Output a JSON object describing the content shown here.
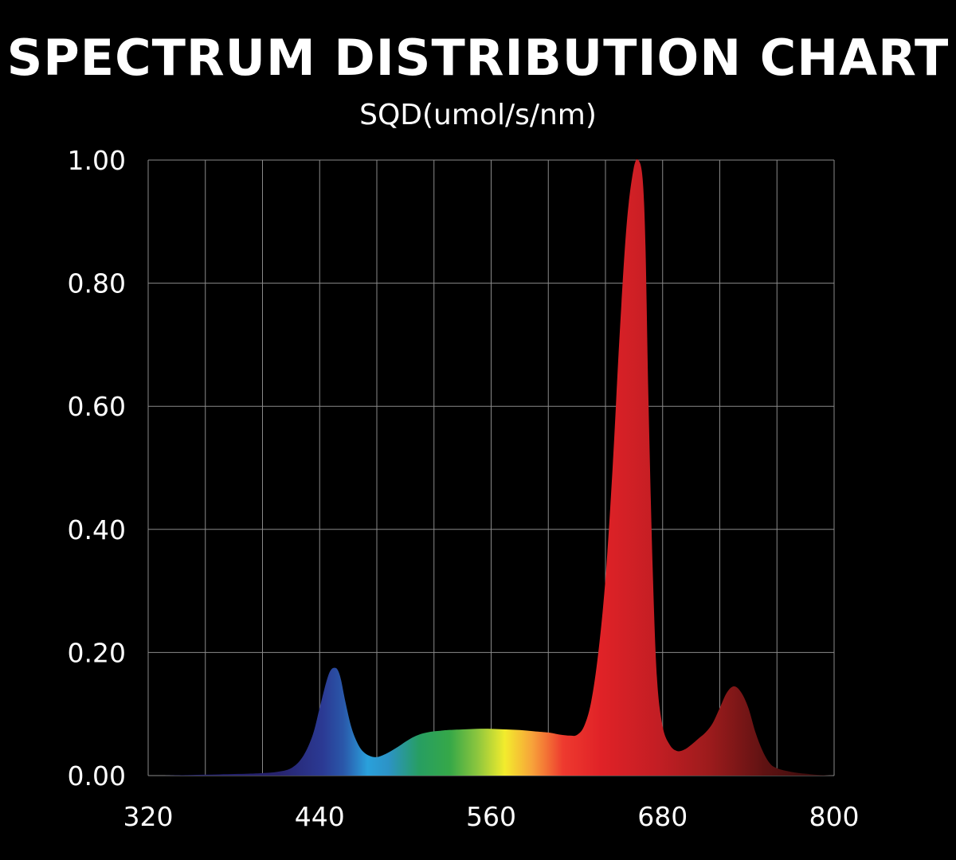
{
  "chart_data": {
    "type": "area",
    "title": "SPECTRUM DISTRIBUTION CHART",
    "ylabel": "SQD(umol/s/nm)",
    "xlabel": "",
    "xlim": [
      320,
      800
    ],
    "ylim": [
      0,
      1
    ],
    "x_ticks": [
      "320",
      "440",
      "560",
      "680",
      "800"
    ],
    "y_ticks": [
      "0.00",
      "0.20",
      "0.40",
      "0.60",
      "0.80",
      "1.00"
    ],
    "grid": true,
    "fill": "spectral-gradient",
    "series": [
      {
        "x": [
          330,
          350,
          370,
          390,
          400,
          410,
          420,
          428,
          435,
          440,
          445,
          448,
          451,
          453,
          455,
          458,
          462,
          466,
          470,
          475,
          480,
          485,
          490,
          495,
          500,
          505,
          510,
          515,
          520,
          525,
          530,
          540,
          550,
          560,
          570,
          580,
          590,
          600,
          605,
          610,
          615,
          620,
          625,
          630,
          635,
          640,
          645,
          650,
          655,
          660,
          663,
          666,
          668,
          670,
          673,
          676,
          680,
          685,
          690,
          695,
          700,
          705,
          710,
          715,
          720,
          725,
          730,
          735,
          740,
          745,
          750,
          755,
          760,
          770,
          780,
          790,
          800
        ],
        "y": [
          0.0,
          0.001,
          0.002,
          0.003,
          0.004,
          0.006,
          0.012,
          0.03,
          0.065,
          0.11,
          0.155,
          0.172,
          0.175,
          0.17,
          0.155,
          0.12,
          0.08,
          0.055,
          0.04,
          0.032,
          0.03,
          0.034,
          0.04,
          0.047,
          0.055,
          0.062,
          0.067,
          0.07,
          0.072,
          0.073,
          0.074,
          0.075,
          0.076,
          0.076,
          0.075,
          0.074,
          0.072,
          0.07,
          0.068,
          0.066,
          0.065,
          0.066,
          0.08,
          0.12,
          0.2,
          0.32,
          0.5,
          0.72,
          0.9,
          0.99,
          1.0,
          0.97,
          0.86,
          0.62,
          0.34,
          0.16,
          0.08,
          0.05,
          0.04,
          0.042,
          0.05,
          0.06,
          0.07,
          0.085,
          0.11,
          0.135,
          0.145,
          0.135,
          0.11,
          0.07,
          0.04,
          0.02,
          0.012,
          0.006,
          0.003,
          0.001,
          0.0
        ]
      }
    ]
  }
}
